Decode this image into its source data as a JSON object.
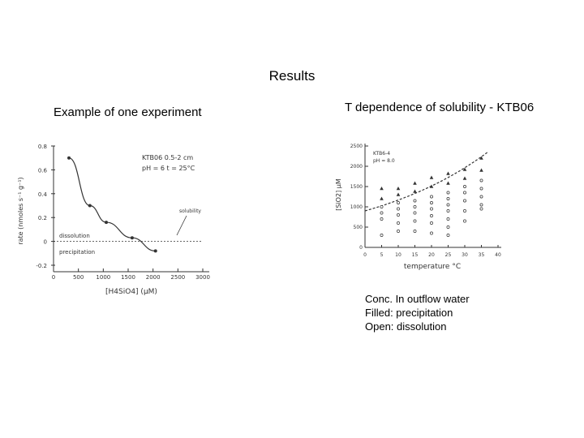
{
  "page": {
    "title": "Results",
    "left_caption": "Example of one experiment",
    "right_caption": "T dependence of solubility - KTB06",
    "notes": [
      "Conc. In outflow water",
      "Filled: precipitation",
      "Open: dissolution"
    ]
  },
  "colors": {
    "ink": "#333333",
    "background": "#ffffff"
  },
  "chart_data": [
    {
      "type": "line",
      "title": "",
      "xlabel": "[H4SiO4] (μM)",
      "ylabel": "rate (nmoles s⁻¹ g⁻¹)",
      "x_ticks": [
        "0",
        "500",
        "1000",
        "1500",
        "2000",
        "2500",
        "3000"
      ],
      "y_ticks": [
        "0.8",
        "0.6",
        "0.4",
        "0.2",
        "0",
        "-0.2"
      ],
      "xlim": [
        0,
        3000
      ],
      "ylim": [
        -0.2,
        0.8
      ],
      "inset_text": [
        "KTB06 0.5-2 cm",
        "pH = 6  t = 25°C"
      ],
      "annotations": {
        "solubility": "solubility",
        "dissolution": "dissolution",
        "precipitation": "precipitation"
      },
      "zero_line": true,
      "series": [
        {
          "x": [
            310,
            730,
            1060,
            1580,
            2050
          ],
          "y": [
            0.7,
            0.3,
            0.16,
            0.03,
            -0.08
          ]
        }
      ]
    },
    {
      "type": "scatter",
      "title": "",
      "xlabel": "temperature °C",
      "ylabel": "[SiO2] μM",
      "x_ticks": [
        "0",
        "5",
        "10",
        "15",
        "20",
        "25",
        "30",
        "35",
        "40"
      ],
      "y_ticks": [
        "2500",
        "2000",
        "1500",
        "1000",
        "500",
        "0"
      ],
      "xlim": [
        0,
        40
      ],
      "ylim": [
        0,
        2500
      ],
      "inset_text": [
        "KTB6-4",
        "pH = 8.0"
      ],
      "trend_line": "dashed",
      "series": [
        {
          "marker": "filled",
          "x": [
            5,
            5,
            10,
            10,
            15,
            15,
            20,
            20,
            25,
            25,
            30,
            30,
            35,
            35
          ],
          "y": [
            1450,
            1200,
            1450,
            1300,
            1580,
            1380,
            1720,
            1500,
            1820,
            1580,
            1920,
            1700,
            2200,
            1900
          ]
        },
        {
          "marker": "open",
          "x": [
            5,
            5,
            5,
            5,
            10,
            10,
            10,
            10,
            10,
            15,
            15,
            15,
            15,
            15,
            20,
            20,
            20,
            20,
            20,
            20,
            25,
            25,
            25,
            25,
            25,
            25,
            25,
            30,
            30,
            30,
            30,
            30,
            35,
            35,
            35,
            35,
            35
          ],
          "y": [
            1000,
            850,
            700,
            300,
            1100,
            950,
            800,
            600,
            400,
            1150,
            1000,
            850,
            650,
            400,
            1250,
            1100,
            950,
            780,
            600,
            350,
            1350,
            1200,
            1050,
            900,
            700,
            500,
            300,
            1500,
            1350,
            1150,
            900,
            650,
            1650,
            1450,
            1250,
            1050,
            950
          ]
        }
      ]
    }
  ]
}
